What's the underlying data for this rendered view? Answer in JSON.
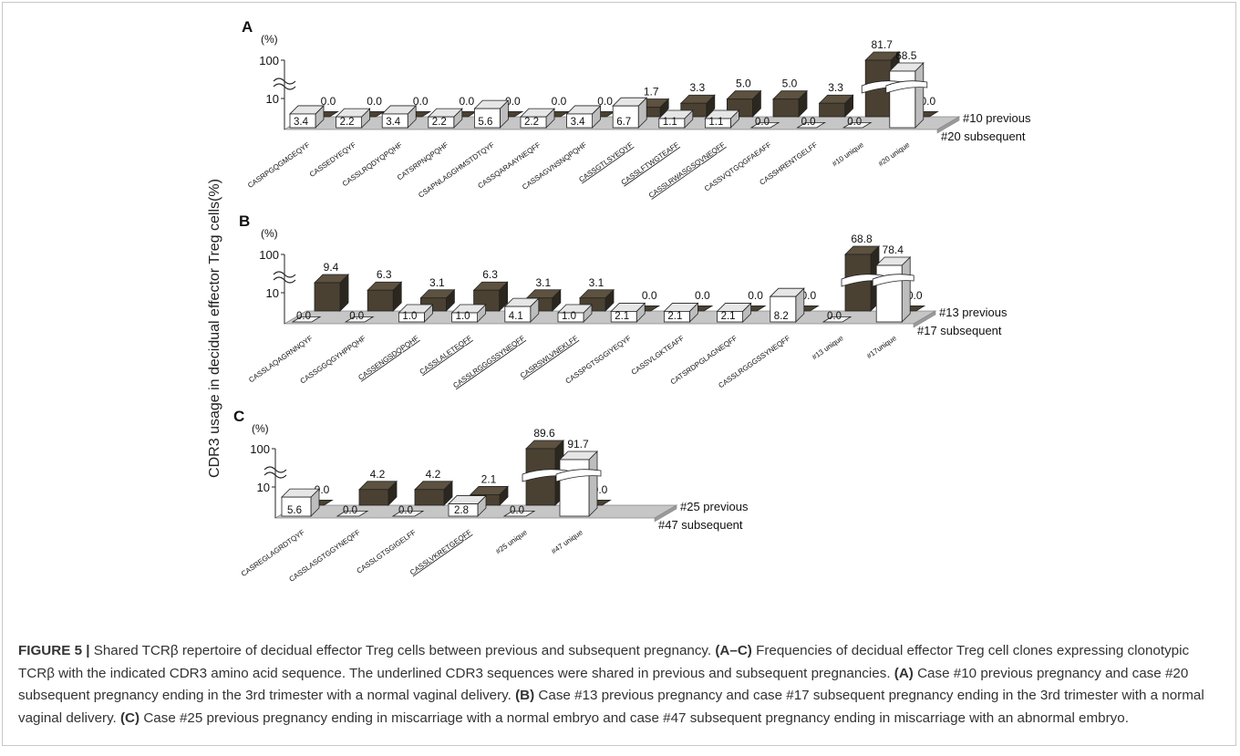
{
  "figure": {
    "ylabel": "CDR3 usage in decidual effector Treg cells(%)",
    "caption": {
      "title_bold": "FIGURE 5 |",
      "title_rest": " Shared TCRβ repertoire of decidual effector Treg cells between previous and subsequent pregnancy. ",
      "ac_bold": "(A–C)",
      "ac_rest": " Frequencies of decidual effector Treg cell clones expressing clonotypic TCRβ with the indicated CDR3 amino acid sequence. The underlined CDR3 sequences were shared in previous and subsequent pregnancies. ",
      "a_bold": "(A)",
      "a_rest": " Case #10 previous pregnancy and case #20 subsequent pregnancy ending in the 3rd trimester with a normal vaginal delivery. ",
      "b_bold": "(B)",
      "b_rest": " Case #13 previous pregnancy and case #17 subsequent pregnancy ending in the 3rd trimester with a normal vaginal delivery. ",
      "c_bold": "(C)",
      "c_rest": " Case #25 previous pregnancy ending in miscarriage with a normal embryo and case #47 subsequent pregnancy ending in miscarriage with an abnormal embryo."
    }
  },
  "chart_data": [
    {
      "type": "bar",
      "panel": "A",
      "unit": "(%)",
      "y_ticks": [
        "100",
        "10"
      ],
      "categories": [
        "CASRPGQGMGEQYF",
        "CASSEDYEQYF",
        "CASSLRQDYQPQHF",
        "CATSRPNQPQHF",
        "CSAPNLAGGHMSTDTQYF",
        "CASSQARAAYNEQFF",
        "CASSAGVNSNQPQHF",
        "CASSGTLSYEQYF",
        "CASSLFTWGTEAFF",
        "CASSLRWASGSQVNEQFF",
        "CASSVQTGQGFAEAFF",
        "CASSHRENTGELFF",
        "#10 unique",
        "#20 unique"
      ],
      "underlined": [
        false,
        false,
        false,
        false,
        false,
        false,
        false,
        true,
        true,
        true,
        false,
        false,
        false,
        false
      ],
      "series": [
        {
          "name": "#10 previous",
          "color": "#4a4132",
          "values": [
            0.0,
            0.0,
            0.0,
            0.0,
            0.0,
            0.0,
            0.0,
            1.7,
            3.3,
            5.0,
            5.0,
            3.3,
            81.7,
            0.0
          ]
        },
        {
          "name": "#20 subsequent",
          "color": "#ffffff",
          "values": [
            3.4,
            2.2,
            3.4,
            2.2,
            5.6,
            2.2,
            3.4,
            6.7,
            1.1,
            1.1,
            0.0,
            0.0,
            0.0,
            68.5
          ]
        }
      ]
    },
    {
      "type": "bar",
      "panel": "B",
      "unit": "(%)",
      "y_ticks": [
        "100",
        "10"
      ],
      "categories": [
        "CASSLAQAGRNNQYF",
        "CASSGGQGYHPPQHF",
        "CASSENGSDQPQHF",
        "CASSLALETEQFF",
        "CASSLRGGGSSYNEQFF",
        "CASRSWLVNEKLFF",
        "CASSPGTSGGIYEQYF",
        "CASSVLGKTEAFF",
        "CATSRDPGLAGNEQFF",
        "CASSLRGGGSSYNEQFF",
        "#13 unique",
        "#17unique"
      ],
      "underlined": [
        false,
        false,
        true,
        true,
        true,
        true,
        false,
        false,
        false,
        false,
        false,
        false
      ],
      "series": [
        {
          "name": "#13 previous",
          "color": "#4a4132",
          "values": [
            9.4,
            6.3,
            3.1,
            6.3,
            3.1,
            3.1,
            0.0,
            0.0,
            0.0,
            0.0,
            68.8,
            0.0
          ]
        },
        {
          "name": "#17 subsequent",
          "color": "#ffffff",
          "values": [
            0.0,
            0.0,
            1.0,
            1.0,
            4.1,
            1.0,
            2.1,
            2.1,
            2.1,
            8.2,
            0.0,
            78.4
          ]
        }
      ]
    },
    {
      "type": "bar",
      "panel": "C",
      "unit": "(%)",
      "y_ticks": [
        "100",
        "10"
      ],
      "categories": [
        "CASREGLAGRDTQYF",
        "CASSLASGTGGYNEQFF",
        "CASSLGTSGIGELFF",
        "CASSLVKRETGEQFF",
        "#25 unique",
        "#47 unique"
      ],
      "underlined": [
        false,
        false,
        false,
        true,
        false,
        false
      ],
      "series": [
        {
          "name": "#25 previous",
          "color": "#4a4132",
          "values": [
            0.0,
            4.2,
            4.2,
            2.1,
            89.6,
            0.0
          ]
        },
        {
          "name": "#47 subsequent",
          "color": "#ffffff",
          "values": [
            5.6,
            0.0,
            0.0,
            2.8,
            0.0,
            91.7
          ]
        }
      ]
    }
  ]
}
